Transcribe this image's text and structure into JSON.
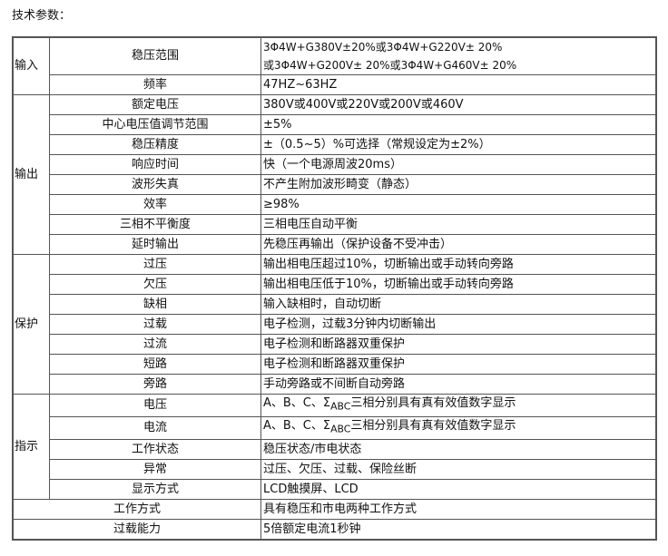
{
  "title": "技术参数：",
  "groups": {
    "input": "输入",
    "output": "输出",
    "protect": "保护",
    "indicate": "指示"
  },
  "rows": [
    {
      "name": "稳压范围",
      "value_line1": "3Φ4W+G380V±20%或3Φ4W+G220V± 20%",
      "value_line2": "或3Φ4W+G200V±  20%或3Φ4W+G460V±  20%"
    },
    {
      "name": "频率",
      "value": "47HZ~63HZ"
    },
    {
      "name": "额定电压",
      "value": "380V或400V或220V或200V或460V"
    },
    {
      "name": "中心电压值调节范围",
      "value": "±5%"
    },
    {
      "name": "稳压精度",
      "value": "±（0.5~5）%可选择（常规设定为±2%）"
    },
    {
      "name": "响应时间",
      "value": "快（一个电源周波20ms）"
    },
    {
      "name": "波形失真",
      "value": "不产生附加波形畸变（静态）"
    },
    {
      "name": "效率",
      "value": "≥98%"
    },
    {
      "name": "三相不平衡度",
      "value": "三相电压自动平衡"
    },
    {
      "name": "延时输出",
      "value": "先稳压再输出（保护设备不受冲击）"
    },
    {
      "name": "过压",
      "value": "输出相电压超过10%，切断输出或手动转向旁路"
    },
    {
      "name": "欠压",
      "value": "输出相电压低于10%，切断输出或手动转向旁路"
    },
    {
      "name": "缺相",
      "value": "输入缺相时，自动切断"
    },
    {
      "name": "过载",
      "value": "电子检测，过载3分钟内切断输出"
    },
    {
      "name": "过流",
      "value": "电子检测和断路器双重保护"
    },
    {
      "name": "短路",
      "value": "电子检测和断路器双重保护"
    },
    {
      "name": "旁路",
      "value": "手动旁路或不间断自动旁路"
    },
    {
      "name": "电压",
      "value_pre": "A、B、C、Σ",
      "value_sub": "ABC",
      "value_post": "三相分别具有真有效值数字显示"
    },
    {
      "name": "电流",
      "value_pre": "A、B、C、Σ",
      "value_sub": "ABC",
      "value_post": "三相分别具有真有效值数字显示"
    },
    {
      "name": "工作状态",
      "value": "稳压状态/市电状态"
    },
    {
      "name": "异常",
      "value": "过压、欠压、过载、保险丝断"
    },
    {
      "name": "显示方式",
      "value": "LCD触摸屏、LCD"
    },
    {
      "name": "工作方式",
      "value": "具有稳压和市电两种工作方式"
    },
    {
      "name": "过载能力",
      "value": "5倍额定电流1秒钟"
    }
  ]
}
